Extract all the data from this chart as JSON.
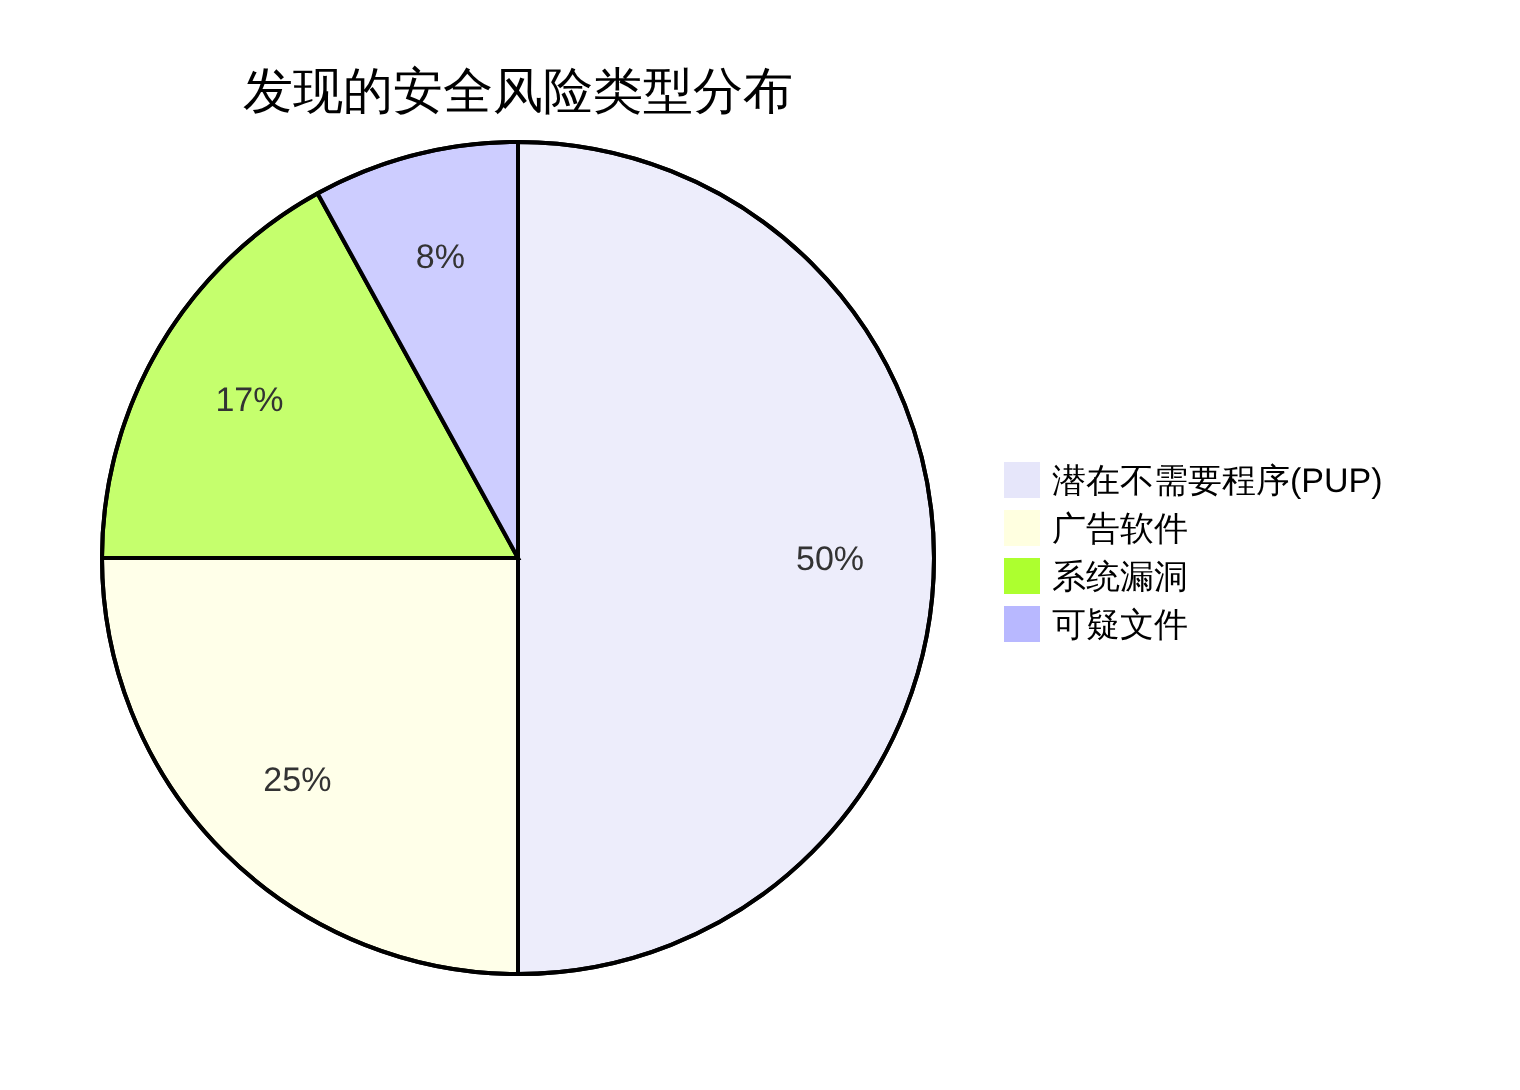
{
  "chart_data": {
    "type": "pie",
    "title": "发现的安全风险类型分布",
    "categories": [
      "潜在不需要程序(PUP)",
      "广告软件",
      "系统漏洞",
      "可疑文件"
    ],
    "values": [
      50,
      25,
      17,
      8
    ],
    "colors": [
      "#e6e6fa",
      "#ffffe0",
      "#adff2f",
      "#b8b8ff"
    ],
    "value_labels": [
      "50%",
      "25%",
      "17%",
      "8%"
    ],
    "legend": "right"
  }
}
